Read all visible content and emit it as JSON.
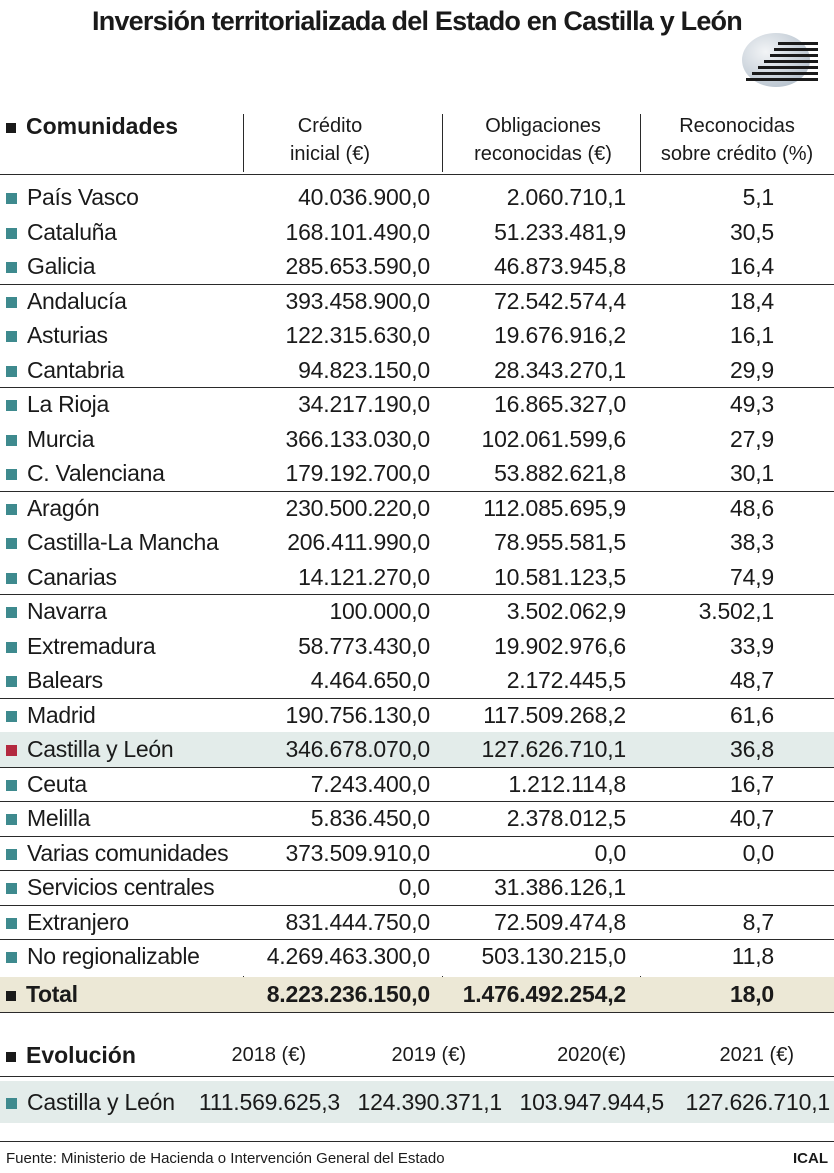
{
  "chart_data": {
    "type": "table",
    "title": "Inversión territorializada del Estado en Castilla y León",
    "columns": {
      "name": "Comunidades",
      "credito_l1": "Crédito",
      "credito_l2": "inicial (€)",
      "oblig_l1": "Obligaciones",
      "oblig_l2": "reconocidas (€)",
      "pct_l1": "Reconocidas",
      "pct_l2": "sobre crédito (%)"
    },
    "rows": [
      {
        "name": "País Vasco",
        "credito": "40.036.900,0",
        "oblig": "2.060.710,1",
        "pct": "5,1"
      },
      {
        "name": "Cataluña",
        "credito": "168.101.490,0",
        "oblig": "51.233.481,9",
        "pct": "30,5"
      },
      {
        "name": "Galicia",
        "credito": "285.653.590,0",
        "oblig": "46.873.945,8",
        "pct": "16,4"
      },
      {
        "name": "Andalucía",
        "credito": "393.458.900,0",
        "oblig": "72.542.574,4",
        "pct": "18,4"
      },
      {
        "name": "Asturias",
        "credito": "122.315.630,0",
        "oblig": "19.676.916,2",
        "pct": "16,1"
      },
      {
        "name": "Cantabria",
        "credito": "94.823.150,0",
        "oblig": "28.343.270,1",
        "pct": "29,9"
      },
      {
        "name": "La Rioja",
        "credito": "34.217.190,0",
        "oblig": "16.865.327,0",
        "pct": "49,3"
      },
      {
        "name": "Murcia",
        "credito": "366.133.030,0",
        "oblig": "102.061.599,6",
        "pct": "27,9"
      },
      {
        "name": "C. Valenciana",
        "credito": "179.192.700,0",
        "oblig": "53.882.621,8",
        "pct": "30,1"
      },
      {
        "name": "Aragón",
        "credito": "230.500.220,0",
        "oblig": "112.085.695,9",
        "pct": "48,6"
      },
      {
        "name": "Castilla-La Mancha",
        "credito": "206.411.990,0",
        "oblig": "78.955.581,5",
        "pct": "38,3"
      },
      {
        "name": "Canarias",
        "credito": "14.121.270,0",
        "oblig": "10.581.123,5",
        "pct": "74,9"
      },
      {
        "name": "Navarra",
        "credito": "100.000,0",
        "oblig": "3.502.062,9",
        "pct": "3.502,1"
      },
      {
        "name": "Extremadura",
        "credito": "58.773.430,0",
        "oblig": "19.902.976,6",
        "pct": "33,9"
      },
      {
        "name": "Balears",
        "credito": "4.464.650,0",
        "oblig": "2.172.445,5",
        "pct": "48,7"
      },
      {
        "name": "Madrid",
        "credito": "190.756.130,0",
        "oblig": "117.509.268,2",
        "pct": "61,6"
      },
      {
        "name": "Castilla y León",
        "credito": "346.678.070,0",
        "oblig": "127.626.710,1",
        "pct": "36,8",
        "highlight": true
      },
      {
        "name": "Ceuta",
        "credito": "7.243.400,0",
        "oblig": "1.212.114,8",
        "pct": "16,7"
      },
      {
        "name": "Melilla",
        "credito": "5.836.450,0",
        "oblig": "2.378.012,5",
        "pct": "40,7"
      },
      {
        "name": "Varias comunidades",
        "credito": "373.509.910,0",
        "oblig": "0,0",
        "pct": "0,0"
      },
      {
        "name": "Servicios centrales",
        "credito": "0,0",
        "oblig": "31.386.126,1",
        "pct": ""
      },
      {
        "name": "Extranjero",
        "credito": "831.444.750,0",
        "oblig": "72.509.474,8",
        "pct": "8,7"
      },
      {
        "name": "No regionalizable",
        "credito": "4.269.463.300,0",
        "oblig": "503.130.215,0",
        "pct": "11,8"
      }
    ],
    "total": {
      "name": "Total",
      "credito": "8.223.236.150,0",
      "oblig": "1.476.492.254,2",
      "pct": "18,0"
    },
    "group_separators_after": [
      2,
      5,
      8,
      11,
      14,
      15,
      16,
      17,
      18,
      19,
      20,
      21
    ],
    "evolution": {
      "title": "Evolución",
      "years": [
        "2018 (€)",
        "2019 (€)",
        "2020(€)",
        "2021 (€)"
      ],
      "row_name": "Castilla y León",
      "values": [
        "111.569.625,3",
        "124.390.371,1",
        "103.947.944,5",
        "127.626.710,1"
      ]
    }
  },
  "footer": {
    "source": "Fuente: Ministerio de Hacienda o Intervención General del Estado",
    "credit": "ICAL"
  },
  "colors": {
    "bullet": "#3e8a8e",
    "bullet_highlight": "#b3283f",
    "row_highlight": "#e3ecea",
    "total_background": "#ece8d6"
  }
}
